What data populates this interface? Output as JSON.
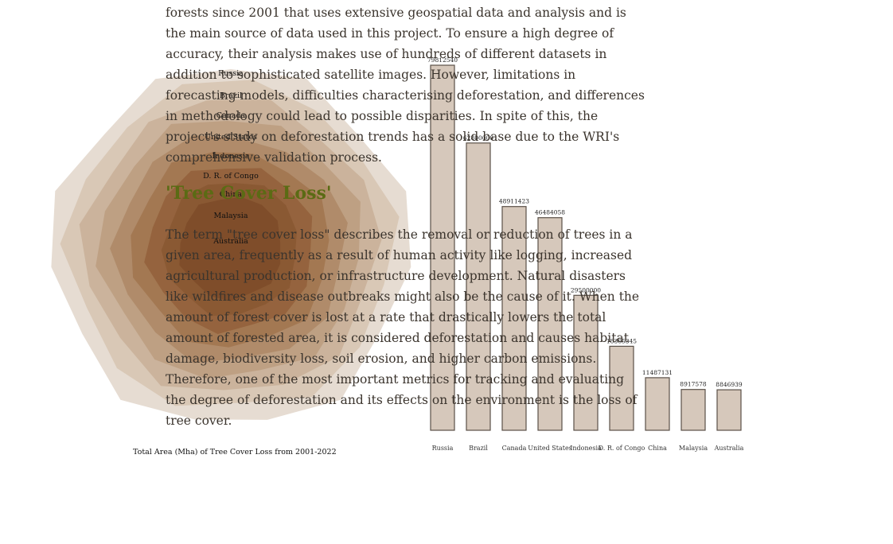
{
  "article": {
    "paragraph1": "forests since 2001 that uses extensive geospatial data and analysis and is the main source of data used in this project. To ensure a high degree of accuracy, their analysis makes use of hundreds of different datasets in addition to sophisticated satellite images. However, limitations in forecasting models, difficulties characterising deforestation, and differences in methodology could lead to possible disparities. In spite of this, the project's study on deforestation trends has a solid base due to the WRI's comprehensive validation process.",
    "heading": "'Tree Cover Loss'",
    "paragraph2": "The term \"tree cover loss\" describes the removal or reduction of trees in a given area, frequently as a result of human activity like logging, increased agricultural production, or infrastructure development. Natural disasters like wildfires and disease outbreaks might also be the cause of it. When the amount of forest cover is lost at a rate that drastically lowers the total amount of forested area, it is considered deforestation and causes habitat damage, biodiversity loss, soil erosion, and higher carbon emissions. Therefore, one of the most important metrics for tracking and evaluating the degree of deforestation and its effects on the environment is the loss of tree cover."
  },
  "chart_data": [
    {
      "type": "radial-rings",
      "title": "Total Area (Mha) of Tree Cover Loss from 2001-2022",
      "categories": [
        "Russia",
        "Brazil",
        "Canada",
        "United States",
        "Indonesia",
        "D. R. of Congo",
        "China",
        "Malaysia",
        "Australia"
      ],
      "colors": [
        "#e4d9cf",
        "#d7c6b4",
        "#c9b29a",
        "#bc9e81",
        "#ae8a68",
        "#a17651",
        "#93623c",
        "#895833",
        "#7e4c2a"
      ]
    },
    {
      "type": "bar",
      "categories": [
        "Russia",
        "Brazil",
        "Canada",
        "United States",
        "Indonesia",
        "D. R. of Congo",
        "China",
        "Malaysia",
        "Australia"
      ],
      "values": [
        79812540,
        62800000,
        48911423,
        46484058,
        29500000,
        18365345,
        11487131,
        8917578,
        8846939
      ],
      "labels": [
        "79812540",
        "62800000",
        "48911423",
        "46484058",
        "29500000",
        "18365345",
        "11487131",
        "8917578",
        "8846939"
      ],
      "ylim": [
        0,
        79812540
      ],
      "bar_color": "#d6c8bb",
      "bar_stroke": "#5a5048"
    }
  ]
}
